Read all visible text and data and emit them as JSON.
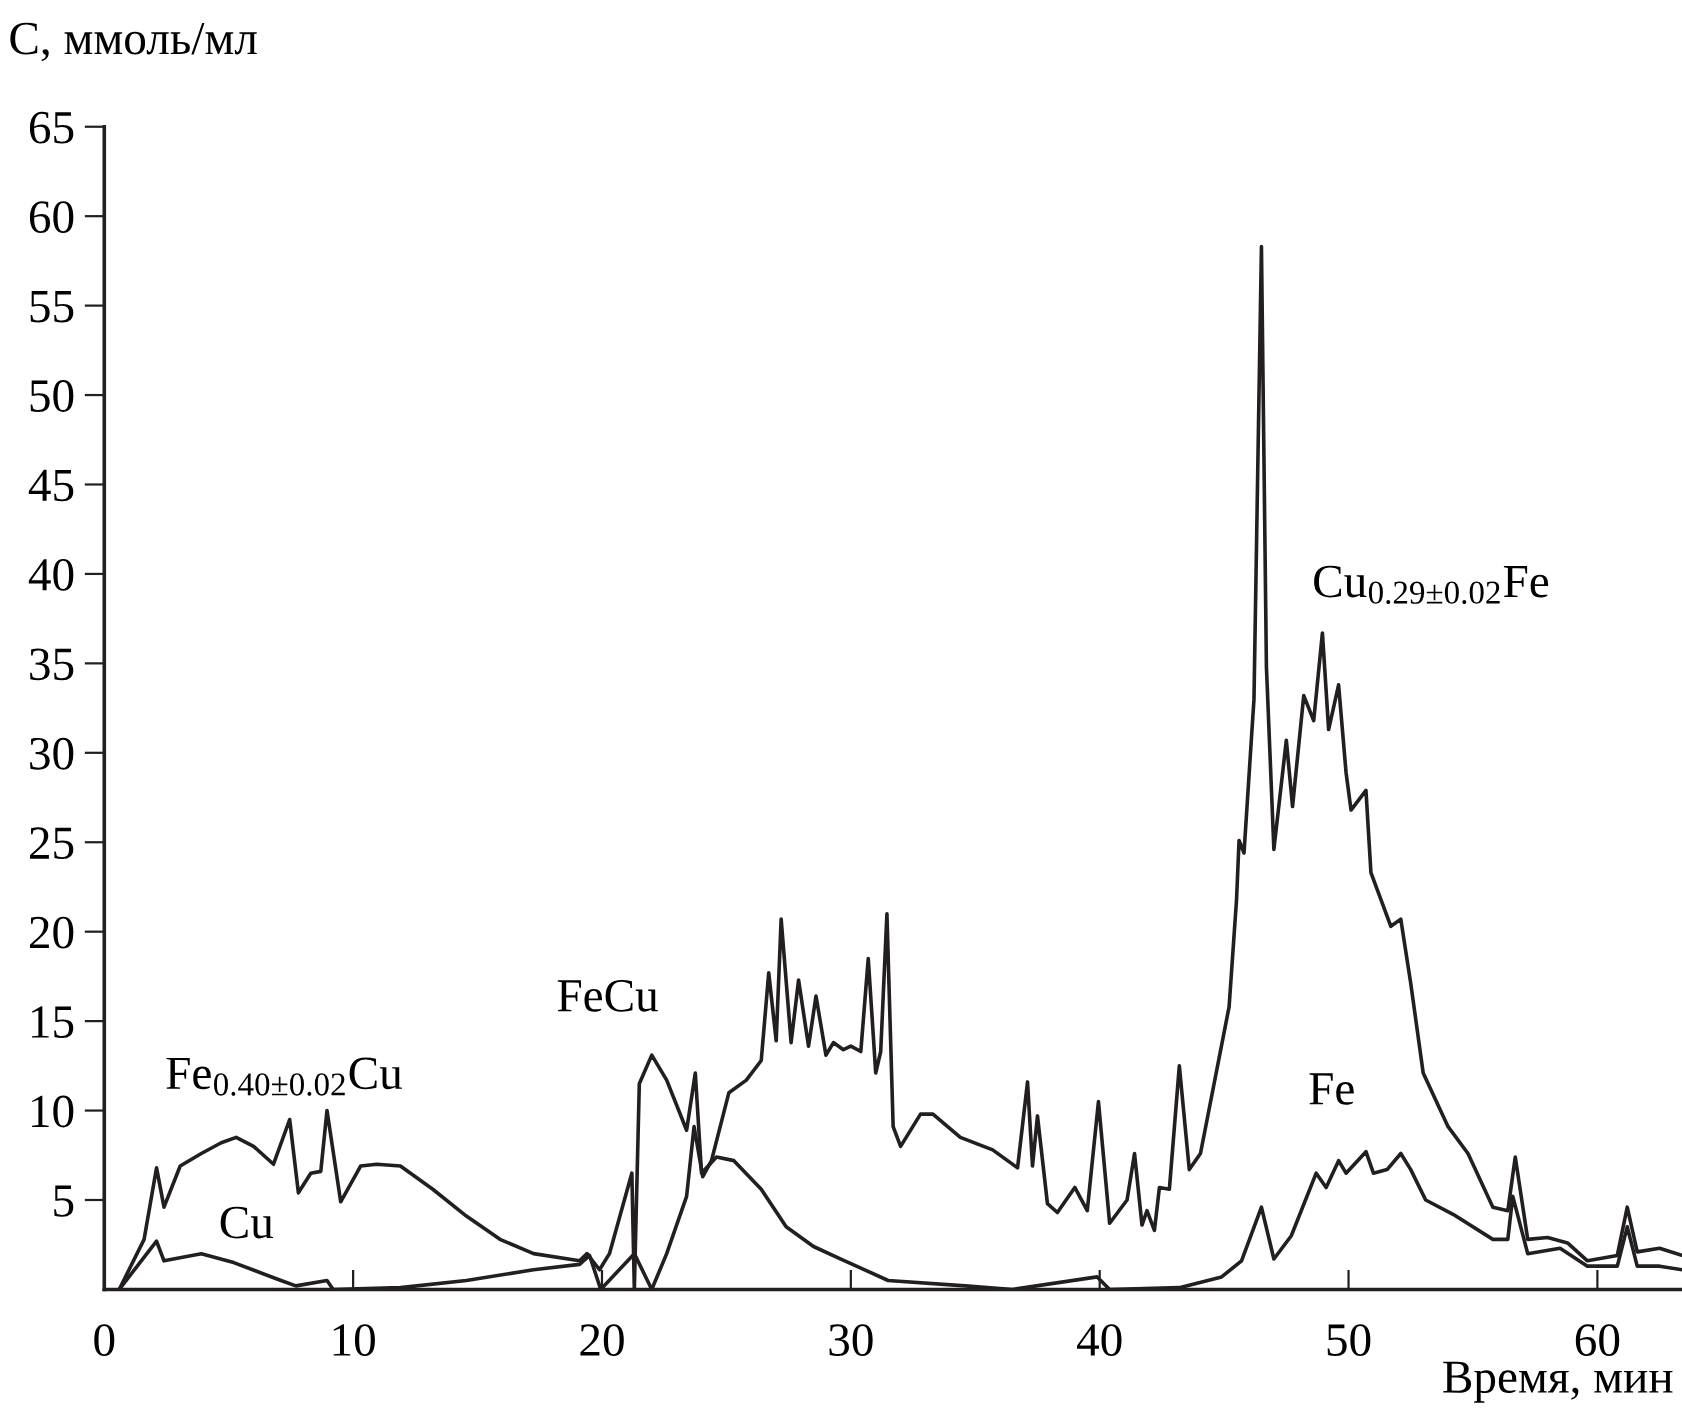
{
  "chart_data": {
    "type": "line",
    "xlabel": "Время, мин",
    "ylabel": "C, ммоль/мл",
    "xlim": [
      0,
      63.4
    ],
    "ylim": [
      0,
      65
    ],
    "xticks": [
      0,
      10,
      20,
      30,
      40,
      50,
      60
    ],
    "yticks": [
      5,
      10,
      15,
      20,
      25,
      30,
      35,
      40,
      45,
      50,
      55,
      60,
      65
    ],
    "grid": false,
    "marker": "none",
    "line_style": "solid",
    "series": [
      {
        "color": "#231f20",
        "x": [
          0.6,
          1.6,
          2.1,
          2.4,
          3.05,
          3.9,
          4.7,
          5.3,
          6.0,
          6.8,
          7.45,
          7.8,
          8.3,
          8.7,
          8.95,
          9.5,
          10.3,
          10.95,
          11.9,
          13.2,
          14.55,
          15.9,
          17.25,
          19.1,
          19.4,
          19.9,
          20.3,
          20.9,
          21.2,
          21.3,
          21.5,
          22.0,
          22.6,
          23.4,
          23.75,
          24.0,
          24.6,
          25.3,
          26.4,
          27.4,
          28.5,
          29.6,
          31.5,
          34.6,
          36.5,
          39.9,
          40.4,
          43.2,
          44.9,
          45.7,
          46.5,
          47.0,
          47.7,
          48.7,
          49.1,
          49.6,
          49.9,
          50.7,
          51.0,
          51.55,
          52.1,
          52.5,
          53.1,
          54.2,
          55.8,
          56.4,
          56.6,
          57.2,
          58.5,
          59.6,
          60.8,
          61.2,
          61.6,
          62.5,
          63.4
        ],
        "values": [
          0,
          2.8,
          6.8,
          4.6,
          6.9,
          7.6,
          8.2,
          8.5,
          8.0,
          7.0,
          9.5,
          5.4,
          6.5,
          6.6,
          10.0,
          4.9,
          6.9,
          7.0,
          6.9,
          5.6,
          4.1,
          2.8,
          2.0,
          1.6,
          2.0,
          1.1,
          2.0,
          5.0,
          6.5,
          0,
          11.5,
          13.1,
          11.7,
          8.9,
          12.1,
          6.5,
          7.4,
          7.2,
          5.6,
          3.5,
          2.4,
          1.7,
          0.5,
          0.2,
          0,
          0.7,
          0,
          0.1,
          0.7,
          1.6,
          4.6,
          1.7,
          3.0,
          6.5,
          5.7,
          7.2,
          6.5,
          7.7,
          6.5,
          6.7,
          7.6,
          6.7,
          5.0,
          4.2,
          2.8,
          2.8,
          5.2,
          2.0,
          2.3,
          1.3,
          1.3,
          3.5,
          1.3,
          1.3,
          1.1
        ]
      },
      {
        "color": "#231f20",
        "x": [
          0.6,
          2.1,
          2.4,
          3.9,
          5.2,
          7.1,
          7.7,
          8.95,
          9.2,
          11.9,
          14.55,
          17.25,
          19.1,
          19.5,
          19.95,
          21.3,
          22.0,
          22.6,
          23.4,
          23.7,
          24.05,
          24.4,
          25.1,
          25.8,
          26.4,
          26.7,
          27.0,
          27.2,
          27.6,
          27.9,
          28.3,
          28.6,
          29.0,
          29.3,
          29.7,
          30.0,
          30.4,
          30.7,
          31.0,
          31.2,
          31.45,
          31.7,
          32.0,
          32.8,
          33.3,
          34.4,
          35.7,
          36.7,
          37.1,
          37.3,
          37.5,
          37.9,
          38.3,
          39.0,
          39.5,
          39.95,
          40.4,
          41.1,
          41.4,
          41.7,
          41.9,
          42.2,
          42.4,
          42.8,
          43.2,
          43.6,
          44.05,
          45.2,
          45.5,
          45.6,
          45.8,
          46.2,
          46.5,
          46.7,
          47.0,
          47.5,
          47.75,
          48.2,
          48.6,
          48.95,
          49.2,
          49.6,
          49.9,
          50.1,
          50.7,
          50.9,
          51.7,
          52.1,
          52.5,
          53.0,
          54.0,
          54.8,
          55.8,
          56.4,
          56.7,
          57.2,
          58.0,
          58.8,
          59.6,
          60.8,
          61.2,
          61.6,
          62.5,
          63.4
        ],
        "values": [
          0,
          2.7,
          1.6,
          2.0,
          1.5,
          0.5,
          0.2,
          0.5,
          0,
          0.1,
          0.5,
          1.1,
          1.4,
          1.9,
          0,
          2.0,
          0,
          2.0,
          5.2,
          9.1,
          6.3,
          7.2,
          11.0,
          11.7,
          12.8,
          17.7,
          13.9,
          20.7,
          13.8,
          17.3,
          13.6,
          16.4,
          13.1,
          13.8,
          13.4,
          13.6,
          13.3,
          18.5,
          12.1,
          13.3,
          21.0,
          9.1,
          8.0,
          9.8,
          9.8,
          8.5,
          7.8,
          6.8,
          11.6,
          6.9,
          9.7,
          4.8,
          4.3,
          5.7,
          4.4,
          10.5,
          3.7,
          5.0,
          7.6,
          3.6,
          4.4,
          3.3,
          5.7,
          5.6,
          12.5,
          6.7,
          7.6,
          15.8,
          21.8,
          25.1,
          24.4,
          33.0,
          58.3,
          34.8,
          24.6,
          30.7,
          27.0,
          33.2,
          31.8,
          36.7,
          31.3,
          33.8,
          28.9,
          26.8,
          27.9,
          23.3,
          20.3,
          20.7,
          17.1,
          12.1,
          9.1,
          7.6,
          4.6,
          4.4,
          7.4,
          2.8,
          2.9,
          2.6,
          1.6,
          1.9,
          4.6,
          2.1,
          2.3,
          1.9
        ]
      }
    ],
    "annotations": [
      "Fe$_{0.40±0.02}$Cu",
      "Cu",
      "FeCu",
      "Cu$_{0.29±0.02}$Fe",
      "Fe"
    ]
  }
}
